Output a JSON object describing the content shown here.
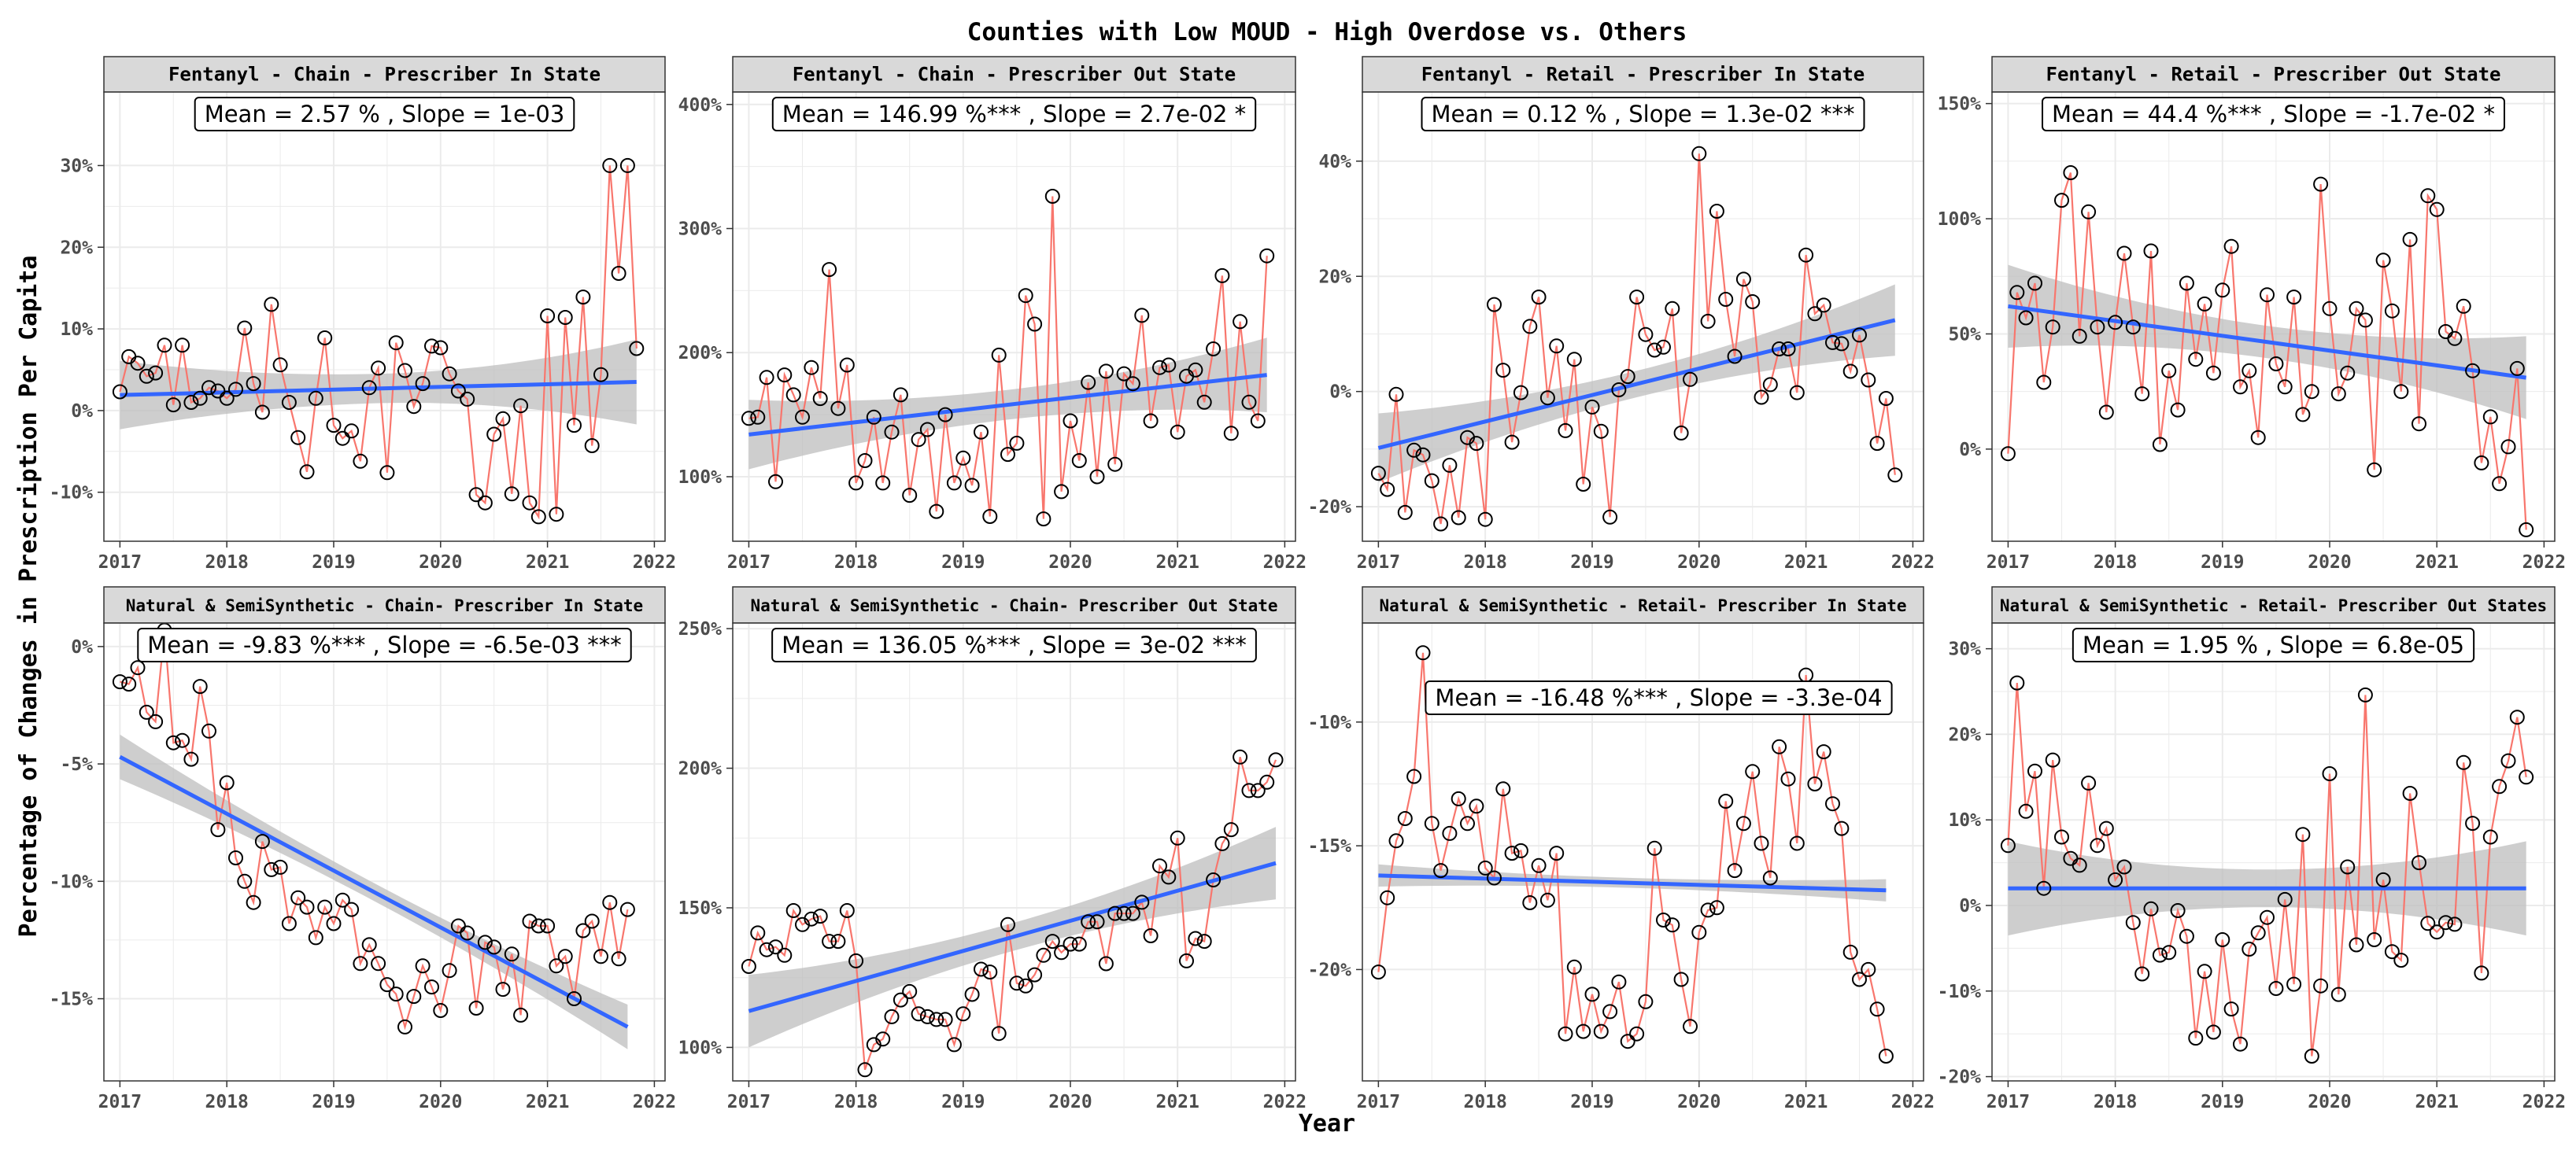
{
  "figure": {
    "title": "Counties with Low MOUD - High Overdose vs. Others",
    "xlabel": "Year",
    "ylabel": "Percentage of Changes in Prescription Per Capita"
  },
  "colors": {
    "series_line": "#F8766D",
    "trend_line": "#3366FF",
    "confidence_band": "#BDBDBD",
    "strip_bg": "#D9D9D9",
    "grid": "#EBEBEB"
  },
  "chart_data": [
    {
      "type": "line",
      "title": "Fentanyl - Chain - Prescriber In State",
      "annotation": "Mean = 2.57 % , Slope = 1e-03",
      "xlim": [
        2016.85,
        2022.1
      ],
      "ylim": [
        -16,
        39
      ],
      "xticks": [
        2017,
        2018,
        2019,
        2020,
        2021,
        2022
      ],
      "xtick_labels": [
        "2017",
        "2018",
        "2019",
        "2020",
        "2021",
        "2022"
      ],
      "yticks": [
        -10,
        0,
        10,
        20,
        30
      ],
      "ytick_labels": [
        "-10%",
        "0%",
        "10%",
        "20%",
        "30%"
      ],
      "x_start": 2017,
      "x_step": 0.08333,
      "values": [
        2.3,
        6.6,
        5.8,
        4.2,
        4.6,
        8,
        0.7,
        8,
        1,
        1.5,
        2.8,
        2.4,
        1.5,
        2.6,
        10.1,
        3.3,
        -0.2,
        13,
        5.6,
        1,
        -3.3,
        -7.5,
        1.5,
        8.9,
        -1.8,
        -3.4,
        -2.5,
        -6.2,
        2.8,
        5.2,
        -7.6,
        8.3,
        4.9,
        0.5,
        3.3,
        7.9,
        7.7,
        4.5,
        2.4,
        1.4,
        -10.3,
        -11.3,
        -2.9,
        -1,
        -10.2,
        0.6,
        -11.3,
        -13,
        11.6,
        -12.7,
        11.4,
        -1.8,
        13.9,
        -4.3,
        4.4,
        30,
        16.8,
        30,
        7.6
      ],
      "trend": {
        "y_start": 1.9,
        "y_end": 3.5,
        "band_half_start": 4.2,
        "band_half_mid": 1.8,
        "band_half_end": 5.2
      }
    },
    {
      "type": "line",
      "title": "Fentanyl - Chain - Prescriber Out State",
      "annotation": "Mean = 146.99 %*** , Slope = 2.7e-02 *",
      "xlim": [
        2016.85,
        2022.1
      ],
      "ylim": [
        48,
        410
      ],
      "xticks": [
        2017,
        2018,
        2019,
        2020,
        2021,
        2022
      ],
      "xtick_labels": [
        "2017",
        "2018",
        "2019",
        "2020",
        "2021",
        "2022"
      ],
      "yticks": [
        100,
        200,
        300,
        400
      ],
      "ytick_labels": [
        "100%",
        "200%",
        "300%",
        "400%"
      ],
      "x_start": 2017,
      "x_step": 0.08333,
      "values": [
        147,
        148,
        180,
        96,
        182,
        166,
        148,
        188,
        163,
        267,
        155,
        190,
        95,
        113,
        148,
        95,
        136,
        166,
        85,
        130,
        138,
        72,
        150,
        95,
        115,
        93,
        136,
        68,
        198,
        118,
        127,
        246,
        223,
        66,
        326,
        88,
        145,
        113,
        176,
        100,
        185,
        110,
        183,
        175,
        230,
        145,
        188,
        190,
        136,
        181,
        186,
        160,
        203,
        262,
        135,
        225,
        160,
        145,
        278
      ],
      "trend": {
        "y_start": 134,
        "y_end": 182,
        "band_half_start": 28,
        "band_half_mid": 12,
        "band_half_end": 30
      }
    },
    {
      "type": "line",
      "title": "Fentanyl - Retail - Prescriber In State",
      "annotation": "Mean = 0.12 % , Slope = 1.3e-02 ***",
      "xlim": [
        2016.85,
        2022.1
      ],
      "ylim": [
        -26,
        52
      ],
      "xticks": [
        2017,
        2018,
        2019,
        2020,
        2021,
        2022
      ],
      "xtick_labels": [
        "2017",
        "2018",
        "2019",
        "2020",
        "2021",
        "2022"
      ],
      "yticks": [
        -20,
        0,
        20,
        40
      ],
      "ytick_labels": [
        "-20%",
        "0%",
        "20%",
        "40%"
      ],
      "x_start": 2017,
      "x_step": 0.08333,
      "values": [
        -14.2,
        -17,
        -0.5,
        -21,
        -10.2,
        -11,
        -15.5,
        -23,
        -12.8,
        -21.9,
        -8,
        -9,
        -22.2,
        15.1,
        3.7,
        -8.8,
        -0.2,
        11.3,
        16.4,
        -1.1,
        7.9,
        -6.8,
        5.6,
        -16.1,
        -2.7,
        -6.9,
        -21.8,
        0.3,
        2.6,
        16.4,
        9.9,
        7.2,
        7.7,
        14.4,
        -7.2,
        2.1,
        41.3,
        12.2,
        31.3,
        16,
        6.1,
        19.5,
        15.6,
        -1,
        1.2,
        7.4,
        7.4,
        -0.2,
        23.7,
        13.5,
        15,
        8.5,
        8.3,
        3.5,
        9.8,
        2,
        -9,
        -1.2,
        -14.5
      ],
      "trend": {
        "y_start": -9.8,
        "y_end": 12.4,
        "band_half_start": 6,
        "band_half_mid": 2.3,
        "band_half_end": 6.2
      }
    },
    {
      "type": "line",
      "title": "Fentanyl - Retail - Prescriber Out State",
      "annotation": "Mean = 44.4 %*** , Slope = -1.7e-02 *",
      "xlim": [
        2016.85,
        2022.1
      ],
      "ylim": [
        -40,
        155
      ],
      "xticks": [
        2017,
        2018,
        2019,
        2020,
        2021,
        2022
      ],
      "xtick_labels": [
        "2017",
        "2018",
        "2019",
        "2020",
        "2021",
        "2022"
      ],
      "yticks": [
        0,
        50,
        100,
        150
      ],
      "ytick_labels": [
        "0%",
        "50%",
        "100%",
        "150%"
      ],
      "x_start": 2017,
      "x_step": 0.08333,
      "values": [
        -2,
        68,
        57,
        72,
        29,
        53,
        108,
        120,
        49,
        103,
        53,
        16,
        55,
        85,
        53,
        24,
        86,
        2,
        34,
        17,
        72,
        39,
        63,
        33,
        69,
        88,
        27,
        34,
        5,
        67,
        37,
        27,
        66,
        15,
        25,
        115,
        61,
        24,
        33,
        61,
        56,
        -9,
        82,
        60,
        25,
        91,
        11,
        110,
        104,
        51,
        48,
        62,
        34,
        -6,
        14,
        -15,
        1,
        35,
        -35
      ],
      "trend": {
        "y_start": 62,
        "y_end": 31,
        "band_half_start": 18,
        "band_half_mid": 7,
        "band_half_end": 18
      }
    },
    {
      "type": "line",
      "title": "Natural & SemiSynthetic - Chain- Prescriber In State",
      "annotation": "Mean = -9.83 %*** , Slope = -6.5e-03 ***",
      "xlim": [
        2016.85,
        2022.1
      ],
      "ylim": [
        -18.5,
        1.0
      ],
      "xticks": [
        2017,
        2018,
        2019,
        2020,
        2021,
        2022
      ],
      "xtick_labels": [
        "2017",
        "2018",
        "2019",
        "2020",
        "2021",
        "2022"
      ],
      "yticks": [
        0,
        -5,
        -10,
        -15
      ],
      "ytick_labels": [
        "0%",
        "-5%",
        "-10%",
        "-15%"
      ],
      "x_start": 2017,
      "x_step": 0.08333,
      "values": [
        -1.5,
        -1.6,
        -0.9,
        -2.8,
        -3.2,
        0.7,
        -4.1,
        -4.0,
        -4.8,
        -1.7,
        -3.6,
        -7.8,
        -5.8,
        -9.0,
        -10.0,
        -10.9,
        -8.3,
        -9.5,
        -9.4,
        -11.8,
        -10.7,
        -11.1,
        -12.4,
        -11.1,
        -11.8,
        -10.8,
        -11.2,
        -13.5,
        -12.7,
        -13.5,
        -14.4,
        -14.8,
        -16.2,
        -14.9,
        -13.6,
        -14.5,
        -15.5,
        -13.8,
        -11.9,
        -12.2,
        -15.4,
        -12.6,
        -12.8,
        -14.6,
        -13.1,
        -15.7,
        -11.7,
        -11.9,
        -11.9,
        -13.6,
        -13.2,
        -15.0,
        -12.1,
        -11.7,
        -13.2,
        -10.9,
        -13.3,
        -11.2
      ],
      "trend": {
        "y_start": -4.7,
        "y_end": -16.2,
        "band_half_start": 0.95,
        "band_half_mid": 0.38,
        "band_half_end": 0.95
      }
    },
    {
      "type": "line",
      "title": "Natural & SemiSynthetic - Chain- Prescriber Out State",
      "annotation": "Mean = 136.05 %*** , Slope = 3e-02 ***",
      "xlim": [
        2016.85,
        2022.1
      ],
      "ylim": [
        88,
        252
      ],
      "xticks": [
        2017,
        2018,
        2019,
        2020,
        2021,
        2022
      ],
      "xtick_labels": [
        "2017",
        "2018",
        "2019",
        "2020",
        "2021",
        "2022"
      ],
      "yticks": [
        100,
        150,
        200,
        250
      ],
      "ytick_labels": [
        "100%",
        "150%",
        "200%",
        "250%"
      ],
      "x_start": 2017,
      "x_step": 0.08333,
      "values": [
        129,
        141,
        135,
        136,
        133,
        149,
        144,
        146,
        147,
        138,
        138,
        149,
        131,
        92,
        101,
        103,
        111,
        117,
        120,
        112,
        111,
        110,
        110,
        101,
        112,
        119,
        128,
        127,
        105,
        144,
        123,
        122,
        126,
        133,
        138,
        134,
        137,
        137,
        145,
        145,
        130,
        148,
        148,
        148,
        152,
        140,
        165,
        161,
        175,
        131,
        139,
        138,
        160,
        173,
        178,
        204,
        192,
        192,
        195,
        203
      ],
      "trend": {
        "y_start": 113,
        "y_end": 166,
        "band_half_start": 13,
        "band_half_mid": 5,
        "band_half_end": 13
      }
    },
    {
      "type": "line",
      "title": "Natural & SemiSynthetic - Retail- Prescriber In State",
      "annotation": "Mean = -16.48 %*** , Slope = -3.3e-04",
      "xlim": [
        2016.85,
        2022.1
      ],
      "ylim": [
        -24.5,
        -6.0
      ],
      "xticks": [
        2017,
        2018,
        2019,
        2020,
        2021,
        2022
      ],
      "xtick_labels": [
        "2017",
        "2018",
        "2019",
        "2020",
        "2021",
        "2022"
      ],
      "yticks": [
        -10,
        -15,
        -20
      ],
      "ytick_labels": [
        "-10%",
        "-15%",
        "-20%"
      ],
      "x_start": 2017,
      "x_step": 0.08333,
      "values": [
        -20.1,
        -17.1,
        -14.8,
        -13.9,
        -12.2,
        -7.2,
        -14.1,
        -16.0,
        -14.5,
        -13.1,
        -14.1,
        -13.4,
        -15.9,
        -16.3,
        -12.7,
        -15.3,
        -15.2,
        -17.3,
        -15.8,
        -17.2,
        -15.3,
        -22.6,
        -19.9,
        -22.5,
        -21.0,
        -22.5,
        -21.7,
        -20.5,
        -22.9,
        -22.6,
        -21.3,
        -15.1,
        -18.0,
        -18.2,
        -20.4,
        -22.3,
        -18.5,
        -17.6,
        -17.5,
        -13.2,
        -16.0,
        -14.1,
        -12.0,
        -14.9,
        -16.3,
        -11.0,
        -12.3,
        -14.9,
        -8.1,
        -12.5,
        -11.2,
        -13.3,
        -14.3,
        -19.3,
        -20.4,
        -20.0,
        -21.6,
        -23.5
      ],
      "trend": {
        "y_start": -16.2,
        "y_end": -16.8,
        "band_half_start": 0.45,
        "band_half_mid": 0.2,
        "band_half_end": 0.45
      }
    },
    {
      "type": "line",
      "title": "Natural & SemiSynthetic - Retail- Prescriber Out States",
      "annotation": "Mean = 1.95 % , Slope = 6.8e-05",
      "xlim": [
        2016.85,
        2022.1
      ],
      "ylim": [
        -20.5,
        33
      ],
      "xticks": [
        2017,
        2018,
        2019,
        2020,
        2021,
        2022
      ],
      "xtick_labels": [
        "2017",
        "2018",
        "2019",
        "2020",
        "2021",
        "2022"
      ],
      "yticks": [
        -20,
        -10,
        0,
        10,
        20,
        30
      ],
      "ytick_labels": [
        "-20%",
        "-10%",
        "0%",
        "10%",
        "20%",
        "30%"
      ],
      "x_start": 2017,
      "x_step": 0.08333,
      "values": [
        7,
        26,
        11,
        15.7,
        2,
        17,
        8,
        5.5,
        4.7,
        14.3,
        7,
        9,
        3,
        4.5,
        -2,
        -8,
        -0.4,
        -5.8,
        -5.5,
        -0.6,
        -3.6,
        -15.5,
        -7.7,
        -14.8,
        -4,
        -12.1,
        -16.2,
        -5.1,
        -3.2,
        -1.4,
        -9.7,
        0.7,
        -9.2,
        8.3,
        -17.6,
        -9.4,
        15.4,
        -10.4,
        4.5,
        -4.6,
        24.6,
        -4,
        3,
        -5.4,
        -6.4,
        13.1,
        5,
        -2.1,
        -3.1,
        -2,
        -2.2,
        16.7,
        9.6,
        -7.9,
        8,
        13.9,
        16.9,
        22,
        15
      ],
      "trend": {
        "y_start": 2,
        "y_end": 2,
        "band_half_start": 5.5,
        "band_half_mid": 2.2,
        "band_half_end": 5.5
      }
    }
  ]
}
